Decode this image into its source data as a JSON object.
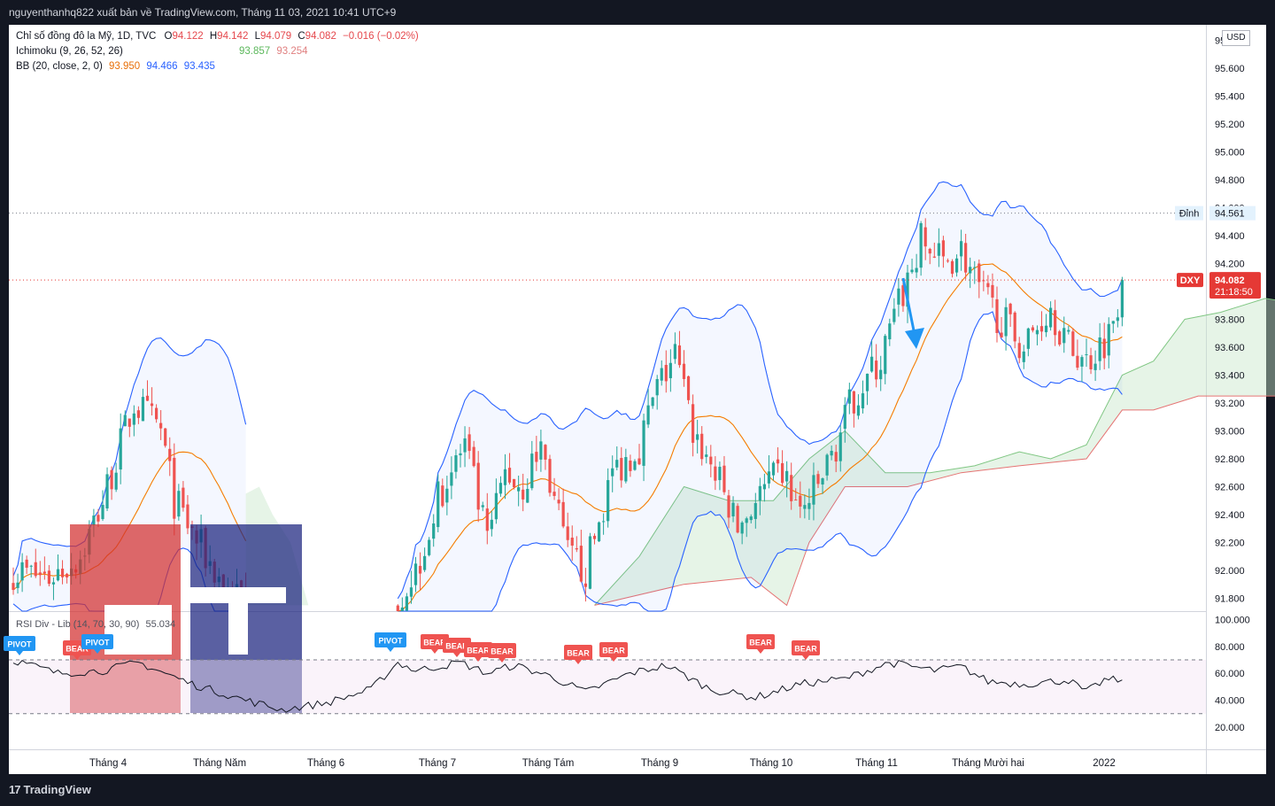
{
  "header": {
    "title": "nguyenthanhq822 xuất bản về TradingView.com, Tháng 11 03, 2021 10:41 UTC+9"
  },
  "legend": {
    "symbol_line": {
      "name": "Chỉ số đồng đô la Mỹ, 1D, TVC",
      "o_label": "O",
      "o": "94.122",
      "h_label": "H",
      "h": "94.142",
      "l_label": "L",
      "l": "94.079",
      "c_label": "C",
      "c": "94.082",
      "change": "−0.016 (−0.02%)"
    },
    "ichimoku": {
      "name": "Ichimoku (9, 26, 52, 26)",
      "v1": "93.857",
      "v2": "93.254"
    },
    "bb": {
      "name": "BB (20, close, 2, 0)",
      "basis": "93.950",
      "upper": "94.466",
      "lower": "93.435"
    },
    "rsi": {
      "name": "RSI Div - Lib (14, 70, 30, 90)",
      "value": "55.034"
    }
  },
  "price_axis": {
    "currency": "USD",
    "ticks": [
      "95.800",
      "95.600",
      "95.400",
      "95.200",
      "95.000",
      "94.800",
      "94.600",
      "94.400",
      "94.200",
      "94.000",
      "93.800",
      "93.600",
      "93.400",
      "93.200",
      "93.000",
      "92.800",
      "92.600",
      "92.400",
      "92.200",
      "92.000",
      "91.800"
    ],
    "peak_label": "Đỉnh",
    "peak_value": "94.561",
    "symbol_tag": "DXY",
    "last_price": "94.082",
    "countdown": "21:18:50"
  },
  "rsi_axis": {
    "ticks": [
      "100.000",
      "80.000",
      "60.000",
      "40.000",
      "20.000"
    ]
  },
  "time_axis": {
    "labels": [
      "Tháng 4",
      "Tháng Năm",
      "Tháng 6",
      "Tháng 7",
      "Tháng Tám",
      "Tháng 9",
      "Tháng 10",
      "Tháng 11",
      "Tháng Mười hai",
      "2022"
    ]
  },
  "signals": {
    "pivot": "PIVOT",
    "bear": "BEAR"
  },
  "footer": {
    "brand": "TradingView"
  },
  "colors": {
    "up": "#26a69a",
    "down": "#ef5350",
    "bb": "#2962ff",
    "basis": "#f57c00",
    "cloud_green": "#c8e6c9",
    "cloud_red": "#ffcdd2",
    "arrow": "#2196f3",
    "price_line": "#e53935"
  },
  "chart_data": {
    "type": "candlestick",
    "price_range": [
      91.7,
      95.95
    ],
    "peak": 94.561,
    "last": 94.082,
    "rsi_range": [
      10,
      100
    ],
    "rsi_levels": [
      70,
      30
    ],
    "rsi_last": 55.034,
    "x_labels": [
      "Tháng 4",
      "Tháng Năm",
      "Tháng 6",
      "Tháng 7",
      "Tháng Tám",
      "Tháng 9",
      "Tháng 10",
      "Tháng 11",
      "Tháng Mười hai",
      "2022"
    ]
  }
}
